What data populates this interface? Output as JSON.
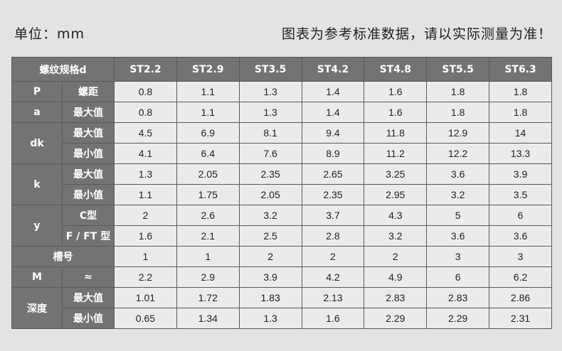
{
  "header": {
    "unit": "单位：mm",
    "note": "图表为参考标准数据，请以实际测量为准！"
  },
  "table": {
    "corner": "螺纹规格d",
    "columns": [
      "ST2.2",
      "ST2.9",
      "ST3.5",
      "ST4.2",
      "ST4.8",
      "ST5.5",
      "ST6.3"
    ],
    "groups": {
      "p": "P",
      "a": "a",
      "dk": "dk",
      "k": "k",
      "y": "y",
      "slot": "槽号",
      "m": "M",
      "depth": "深度"
    },
    "rows": [
      {
        "sub": "螺距",
        "values": [
          "0.8",
          "1.1",
          "1.3",
          "1.4",
          "1.6",
          "1.8",
          "1.8"
        ]
      },
      {
        "sub": "最大值",
        "values": [
          "0.8",
          "1.1",
          "1.3",
          "1.4",
          "1.6",
          "1.8",
          "1.8"
        ]
      },
      {
        "sub": "最大值",
        "values": [
          "4.5",
          "6.9",
          "8.1",
          "9.4",
          "11.8",
          "12.9",
          "14"
        ]
      },
      {
        "sub": "最小值",
        "values": [
          "4.1",
          "6.4",
          "7.6",
          "8.9",
          "11.2",
          "12.2",
          "13.3"
        ]
      },
      {
        "sub": "最大值",
        "values": [
          "1.3",
          "2.05",
          "2.35",
          "2.65",
          "3.25",
          "3.6",
          "3.9"
        ]
      },
      {
        "sub": "最小值",
        "values": [
          "1.1",
          "1.75",
          "2.05",
          "2.35",
          "2.95",
          "3.2",
          "3.5"
        ]
      },
      {
        "sub": "C型",
        "values": [
          "2",
          "2.6",
          "3.2",
          "3.7",
          "4.3",
          "5",
          "6"
        ]
      },
      {
        "sub": "F / FT 型",
        "values": [
          "1.6",
          "2.1",
          "2.5",
          "2.8",
          "3.2",
          "3.6",
          "3.6"
        ]
      },
      {
        "sub": "",
        "values": [
          "1",
          "1",
          "2",
          "2",
          "2",
          "3",
          "3"
        ]
      },
      {
        "sub": "≈",
        "values": [
          "2.2",
          "2.9",
          "3.9",
          "4.2",
          "4.9",
          "6",
          "6.2"
        ]
      },
      {
        "sub": "最大值",
        "values": [
          "1.01",
          "1.72",
          "1.83",
          "2.13",
          "2.83",
          "2.83",
          "2.86"
        ]
      },
      {
        "sub": "最小值",
        "values": [
          "0.65",
          "1.34",
          "1.3",
          "1.6",
          "2.29",
          "2.29",
          "2.31"
        ]
      }
    ]
  }
}
